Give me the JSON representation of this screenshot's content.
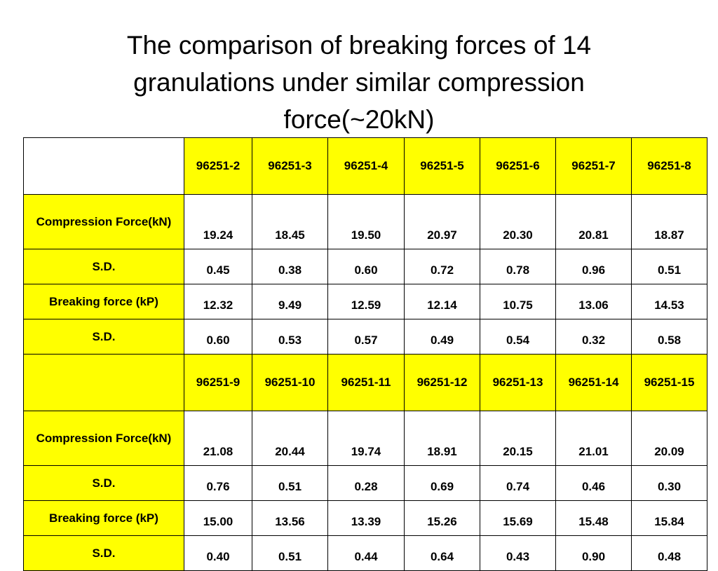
{
  "title": "The comparison of breaking forces of 14 granulations under similar compression force(~20kN)",
  "colors": {
    "highlight": "#ffff00",
    "border": "#000000",
    "background": "#ffffff"
  },
  "blocks": [
    {
      "ids": [
        "96251-2",
        "96251-3",
        "96251-4",
        "96251-5",
        "96251-6",
        "96251-7",
        "96251-8"
      ],
      "rows": [
        {
          "label": "Compression Force(kN)",
          "values": [
            "19.24",
            "18.45",
            "19.50",
            "20.97",
            "20.30",
            "20.81",
            "18.87"
          ]
        },
        {
          "label": "S.D.",
          "values": [
            "0.45",
            "0.38",
            "0.60",
            "0.72",
            "0.78",
            "0.96",
            "0.51"
          ]
        },
        {
          "label": "Breaking force (kP)",
          "values": [
            "12.32",
            "9.49",
            "12.59",
            "12.14",
            "10.75",
            "13.06",
            "14.53"
          ]
        },
        {
          "label": "S.D.",
          "values": [
            "0.60",
            "0.53",
            "0.57",
            "0.49",
            "0.54",
            "0.32",
            "0.58"
          ]
        }
      ]
    },
    {
      "ids": [
        "96251-9",
        "96251-10",
        "96251-11",
        "96251-12",
        "96251-13",
        "96251-14",
        "96251-15"
      ],
      "rows": [
        {
          "label": "Compression Force(kN)",
          "values": [
            "21.08",
            "20.44",
            "19.74",
            "18.91",
            "20.15",
            "21.01",
            "20.09"
          ]
        },
        {
          "label": "S.D.",
          "values": [
            "0.76",
            "0.51",
            "0.28",
            "0.69",
            "0.74",
            "0.46",
            "0.30"
          ]
        },
        {
          "label": "Breaking force (kP)",
          "values": [
            "15.00",
            "13.56",
            "13.39",
            "15.26",
            "15.69",
            "15.48",
            "15.84"
          ]
        },
        {
          "label": "S.D.",
          "values": [
            "0.40",
            "0.51",
            "0.44",
            "0.64",
            "0.43",
            "0.90",
            "0.48"
          ]
        }
      ]
    }
  ]
}
